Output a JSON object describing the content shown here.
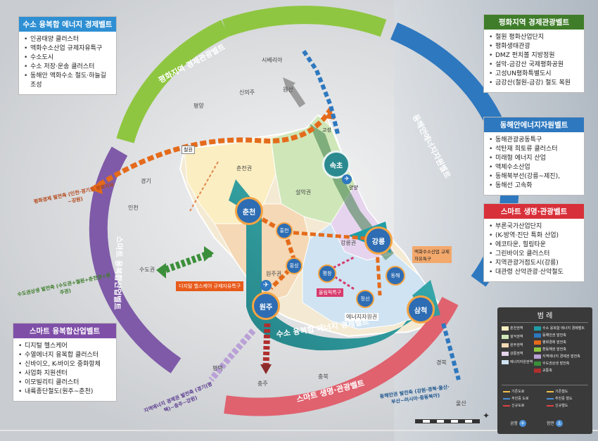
{
  "panels": {
    "hydrogen": {
      "title": "수소 융복합 에너지 경제벨트",
      "items": [
        "인공태양 클러스터",
        "액화수소산업 규제자유특구",
        "수소도시",
        "수소 저장·운송 클러스터",
        "동해안 액화수소 철도·하늘길 조성"
      ]
    },
    "peace": {
      "title": "평화지역 경제관광벨트",
      "items": [
        "철원 평화산업단지",
        "평화생태관광",
        "DMZ 펀치볼 지방정원",
        "설악-금강산 국제평화공원",
        "고성UN평화특별도시",
        "금강산(철원-금강) 철도 복원"
      ]
    },
    "eastcoast": {
      "title": "동해안에너지자원벨트",
      "items": [
        "동해관광공동특구",
        "석탄재 희토류 클러스터",
        "미래형 에너지 산업",
        "액체수소산업",
        "동해북부선(강릉~제진),",
        "동해선 고속화"
      ]
    },
    "smartlife": {
      "title": "스마트 생명·관광벨트",
      "items": [
        "부론국가산업단지",
        "(K-방역·진단 특화 산업)",
        "에코타운, 힐링타운",
        "그린바이오 클러스터",
        "지역관광거점도시(강릉)",
        "대관령 산악관광·산악철도"
      ]
    },
    "smarthealth": {
      "title": "스마트 융복합산업벨트",
      "items": [
        "디지털 헬스케어",
        "수열에너지 융복합 클러스터",
        "신바이오, K-바이오 중화항체",
        "사업화 지원센터",
        "이모빌리티 클러스터",
        "내륙종단철도(원주~춘천)"
      ]
    }
  },
  "belts": {
    "peace": "평화지역 경제관광벨트",
    "eastcoast": "동해안에너지자원벨트",
    "smartlife": "스마트 생명·관광벨트",
    "smarthealth": "스마트 융복합산업벨트",
    "hydrogen": "수소 융복합 에너지 경제벨트"
  },
  "cities": {
    "sokcho": "속초",
    "chuncheon": "춘천",
    "gangneung": "강릉",
    "wonju": "원주",
    "samcheok": "삼척",
    "hongcheon": "홍천",
    "hoengseong": "횡성",
    "pyeongchang": "평창",
    "donghae": "동해",
    "jeongseon": "정선",
    "cheorwon": "철원",
    "goseong": "고성",
    "yangyang": "양양"
  },
  "regions": {
    "chuncheon_area": "춘천권",
    "seorak_area": "설악권",
    "gangneung_area": "강릉권",
    "wonju_area": "원주권",
    "energy_area": "에너지자원권"
  },
  "places": {
    "sinuiju": "신의주",
    "pyongyang": "평양",
    "wonsan": "원산",
    "siberia": "시베리아",
    "gyeonggi": "경기",
    "incheon": "인천",
    "seoul": "수도권",
    "pyeongtaek": "평택",
    "chungju": "충주",
    "chungbuk": "충북",
    "gyeongbuk": "경북",
    "busan": "울산"
  },
  "callouts": {
    "digital": "디지털 헬스케어 규제자유특구",
    "hydrogen_zone": "액화수소산업 규제자유특구",
    "olympic": "올림픽특구"
  },
  "corridors": {
    "west_peace": "평화경제 발전축 (인천·경기도 평화지역~강원)",
    "capital": "수도권상생 발전축 (수도권+철원+춘천권+원주권)",
    "interior": "지역에너지 경제권 발전축 (경기(평택)~충주~강원)",
    "east": "동해안권 발전축 (강원·경북·울산·부산~러시아·중동북아)"
  },
  "legend": {
    "title": "범 례",
    "areas": [
      "춘천권역",
      "설악권역",
      "원주권역",
      "강릉권역",
      "에너지자원권역"
    ],
    "axes": [
      "수소 융복합 에너지 경제벨트",
      "동해안권 발전축",
      "평화경제 발전축",
      "환동해권 발전축",
      "지역에너지 경제권 발전축",
      "수도권상생 발전축",
      "교통축"
    ],
    "roads": [
      "기존도로",
      "추진중 도로",
      "신규도로",
      "기존철도",
      "추진중 철도",
      "신규철도"
    ],
    "airport": "공항",
    "port": "항만"
  },
  "colors": {
    "hydrogen": "#1f9ea7",
    "peace": "#8fc641",
    "eastcoast": "#2e78bf",
    "smartlife": "#e0626f",
    "smarthealth": "#7f5aa8",
    "corridor": "#e46b1b"
  }
}
